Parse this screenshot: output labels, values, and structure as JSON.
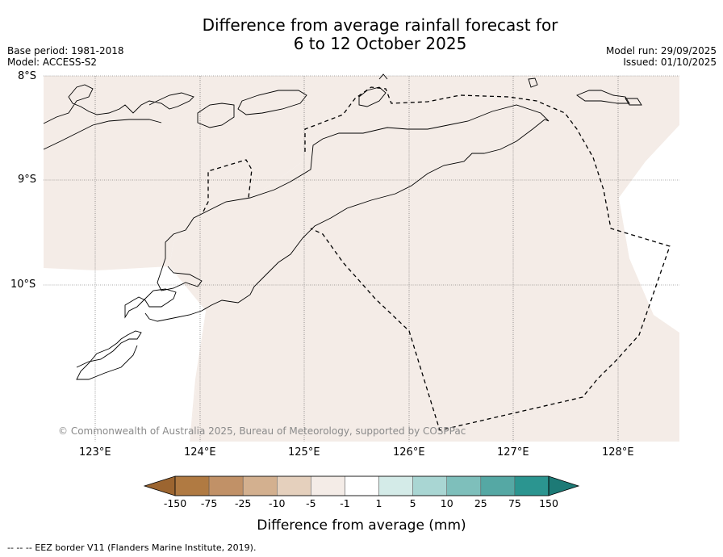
{
  "title": {
    "line1": "Difference from average rainfall forecast for",
    "line2": "6 to 12 October 2025"
  },
  "meta_left": {
    "base_period": "Base period: 1981-2018",
    "model": "Model: ACCESS-S2"
  },
  "meta_right": {
    "model_run": "Model run: 29/09/2025",
    "issued": "Issued: 01/10/2025"
  },
  "map": {
    "latitude_labels": [
      "8°S",
      "9°S",
      "10°S"
    ],
    "longitude_labels": [
      "123°E",
      "124°E",
      "125°E",
      "126°E",
      "127°E",
      "128°E"
    ],
    "copyright": "© Commonwealth of Australia 2025, Bureau of Meteorology, supported by COSPPac",
    "colors": {
      "land_near_normal": "#f4ece7",
      "ocean": "#ffffff",
      "coast": "#000000",
      "grid": "#555555"
    }
  },
  "colorbar": {
    "ticks": [
      "-150",
      "-75",
      "-25",
      "-10",
      "-5",
      "-1",
      "1",
      "5",
      "10",
      "25",
      "75",
      "150"
    ],
    "colors": [
      "#9c6530",
      "#b07a42",
      "#c19167",
      "#d3b08f",
      "#e5d0bd",
      "#f4ece7",
      "#ffffff",
      "#d4ebe8",
      "#a9d6d3",
      "#7ebfbb",
      "#55a8a4",
      "#2b9590",
      "#1d7a76"
    ],
    "label": "Difference from average (mm)"
  },
  "footnote": "-- -- -- EEZ border V11 (Flanders Marine Institute, 2019)."
}
